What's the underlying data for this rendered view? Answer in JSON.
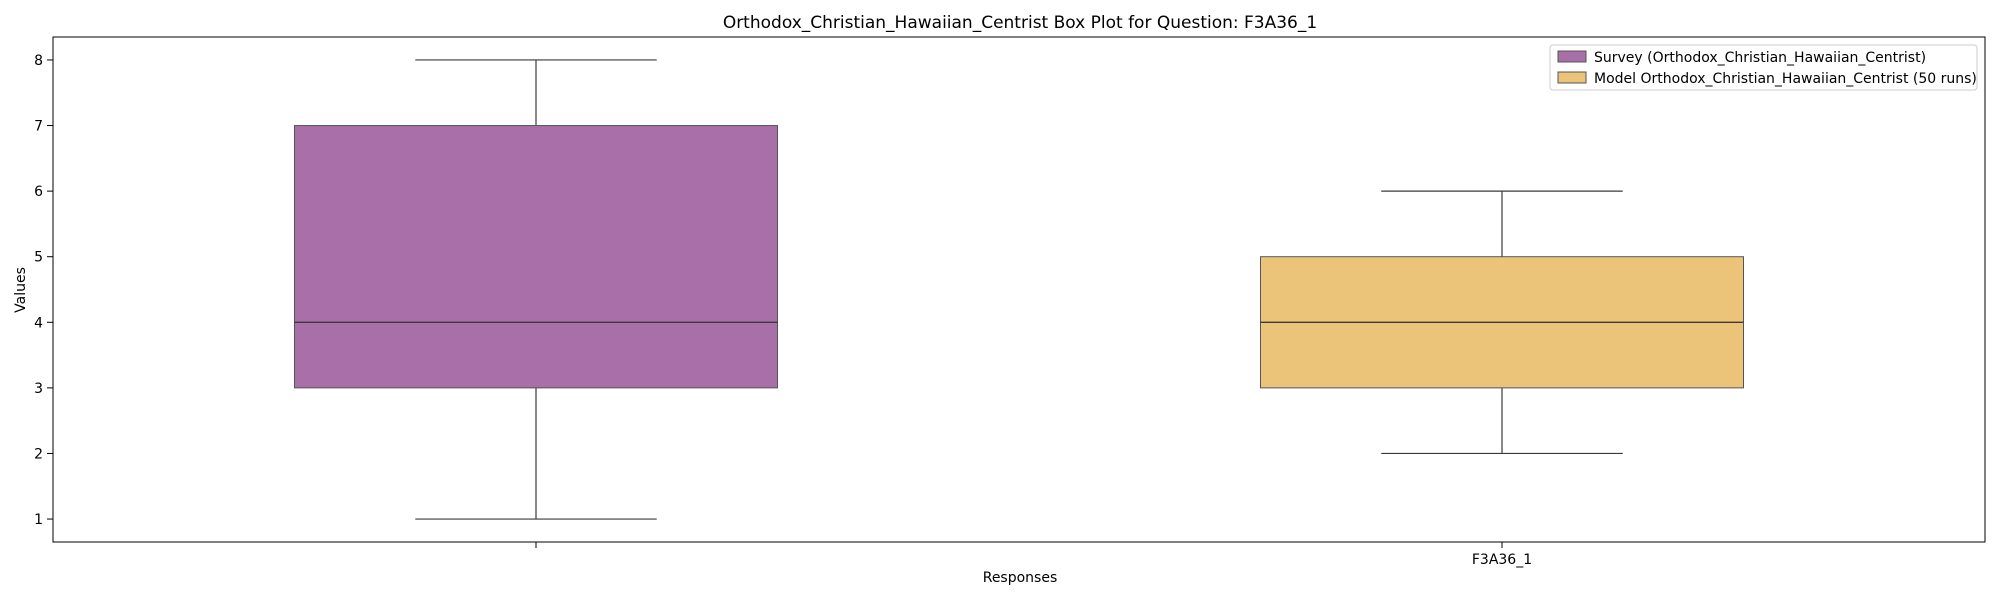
{
  "chart_data": {
    "type": "box",
    "title": "Orthodox_Christian_Hawaiian_Centrist Box Plot for Question: F3A36_1",
    "xlabel": "Responses",
    "ylabel": "Values",
    "ylim": [
      0.65,
      8.35
    ],
    "yticks": [
      1,
      2,
      3,
      4,
      5,
      6,
      7,
      8
    ],
    "xtick_labels": [
      "",
      "F3A36_1"
    ],
    "grid": false,
    "legend_position": "top-right",
    "series": [
      {
        "name": "Survey (Orthodox_Christian_Hawaiian_Centrist)",
        "color": "#a86fa8",
        "whisker_low": 1,
        "q1": 3,
        "median": 4,
        "q3": 7,
        "whisker_high": 8
      },
      {
        "name": "Model Orthodox_Christian_Hawaiian_Centrist (50 runs)",
        "color": "#ebc47a",
        "whisker_low": 2,
        "q1": 3,
        "median": 4,
        "q3": 5,
        "whisker_high": 6
      }
    ]
  }
}
